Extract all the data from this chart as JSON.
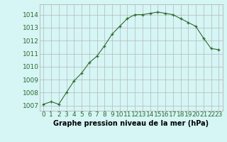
{
  "x": [
    0,
    1,
    2,
    3,
    4,
    5,
    6,
    7,
    8,
    9,
    10,
    11,
    12,
    13,
    14,
    15,
    16,
    17,
    18,
    19,
    20,
    21,
    22,
    23
  ],
  "y": [
    1007.1,
    1007.3,
    1007.1,
    1008.0,
    1008.9,
    1009.5,
    1010.3,
    1010.8,
    1011.6,
    1012.5,
    1013.1,
    1013.7,
    1014.0,
    1014.0,
    1014.1,
    1014.2,
    1014.1,
    1014.0,
    1013.7,
    1013.4,
    1013.1,
    1012.2,
    1011.4,
    1011.3
  ],
  "line_color": "#2d6a2d",
  "marker": "+",
  "marker_size": 3,
  "bg_color": "#d6f5f5",
  "grid_color": "#aaaaaa",
  "xlabel": "Graphe pression niveau de la mer (hPa)",
  "ylabel_ticks": [
    1007,
    1008,
    1009,
    1010,
    1011,
    1012,
    1013,
    1014
  ],
  "xlim": [
    -0.5,
    23.5
  ],
  "ylim": [
    1006.6,
    1014.8
  ],
  "xlabel_fontsize": 7,
  "tick_fontsize": 6.5
}
